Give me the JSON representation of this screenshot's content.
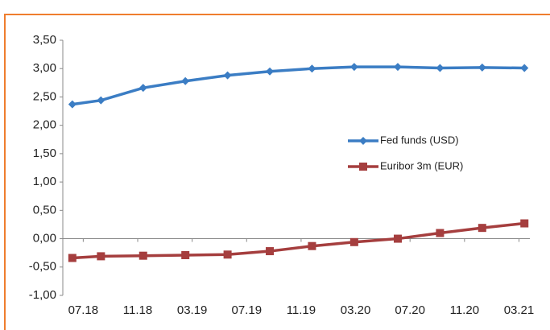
{
  "chart_data": {
    "type": "line",
    "x": [
      -0.8,
      1.3,
      4.4,
      7.5,
      10.6,
      13.7,
      16.8,
      19.9,
      23.1,
      26.2,
      29.3,
      32.4
    ],
    "xlim": [
      -1.5,
      32.8
    ],
    "xticks": [
      {
        "value": 0,
        "label": "07.18"
      },
      {
        "value": 4,
        "label": "11.18"
      },
      {
        "value": 8,
        "label": "03.19"
      },
      {
        "value": 12,
        "label": "07.19"
      },
      {
        "value": 16,
        "label": "11.19"
      },
      {
        "value": 20,
        "label": "03.20"
      },
      {
        "value": 24,
        "label": "07.20"
      },
      {
        "value": 28,
        "label": "11.20"
      },
      {
        "value": 32,
        "label": "03.21"
      }
    ],
    "ylim": [
      -1.0,
      3.5
    ],
    "yticks": [
      {
        "value": -1.0,
        "label": "-1,00"
      },
      {
        "value": -0.5,
        "label": "-0,50"
      },
      {
        "value": 0.0,
        "label": "0,00"
      },
      {
        "value": 0.5,
        "label": "0,50"
      },
      {
        "value": 1.0,
        "label": "1,00"
      },
      {
        "value": 1.5,
        "label": "1,50"
      },
      {
        "value": 2.0,
        "label": "2,00"
      },
      {
        "value": 2.5,
        "label": "2,50"
      },
      {
        "value": 3.0,
        "label": "3,00"
      },
      {
        "value": 3.5,
        "label": "3,50"
      }
    ],
    "series": [
      {
        "name": "Fed funds (USD)",
        "color": "#3b7dc4",
        "marker": "diamond",
        "values": [
          2.37,
          2.44,
          2.66,
          2.78,
          2.88,
          2.95,
          3.0,
          3.03,
          3.03,
          3.01,
          3.02,
          3.01
        ]
      },
      {
        "name": "Euribor 3m (EUR)",
        "color": "#a53e3e",
        "marker": "square",
        "values": [
          -0.34,
          -0.31,
          -0.3,
          -0.29,
          -0.28,
          -0.22,
          -0.13,
          -0.06,
          0.0,
          0.1,
          0.19,
          0.27
        ]
      }
    ]
  }
}
